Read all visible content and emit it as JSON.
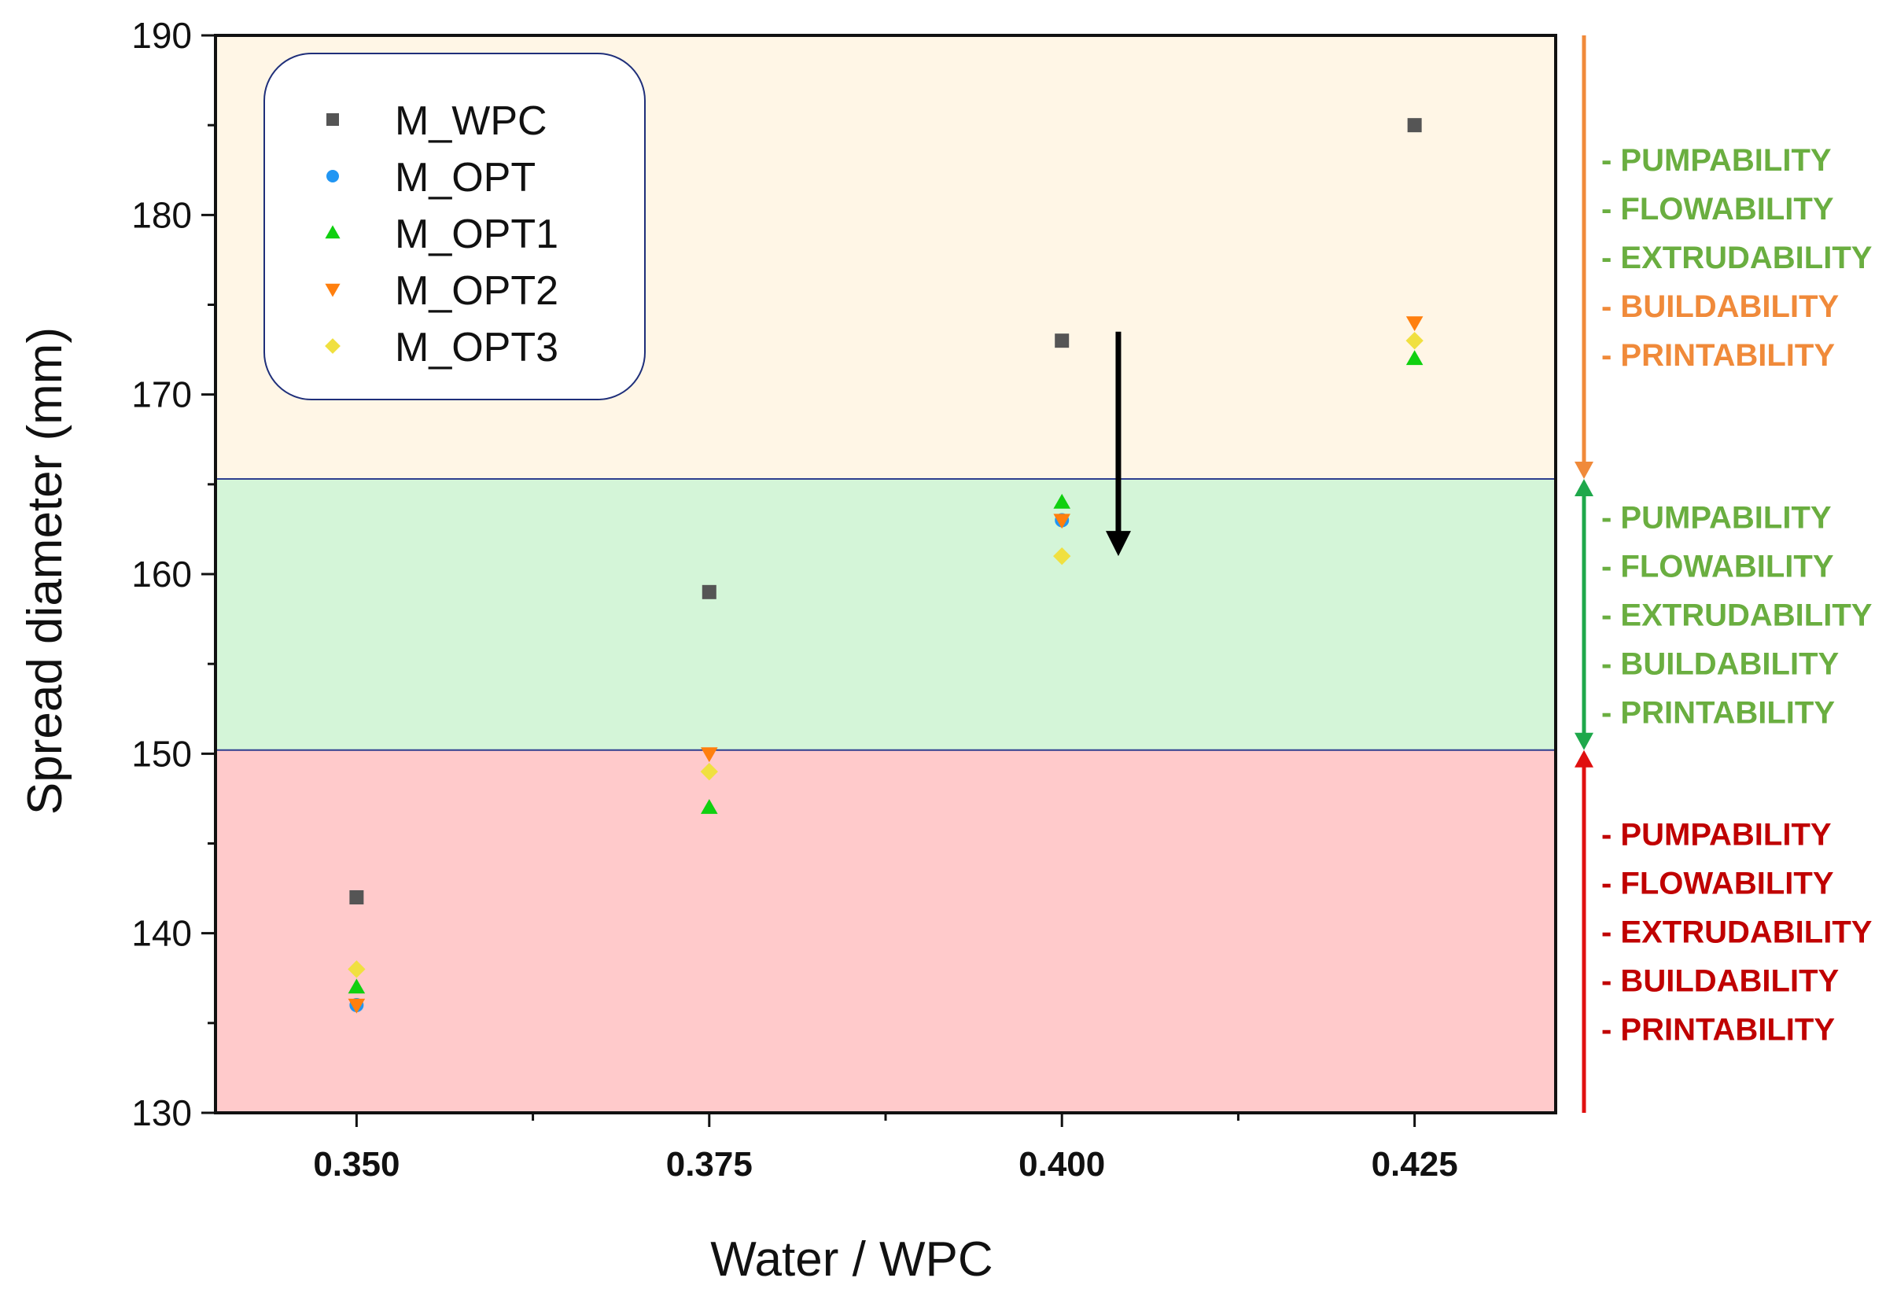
{
  "chart_data": {
    "type": "scatter",
    "title": "",
    "xlabel": "Water / WPC",
    "ylabel": "Spread diameter (mm)",
    "xlim": [
      0.34,
      0.435
    ],
    "ylim": [
      130,
      190
    ],
    "x_ticks": [
      0.35,
      0.375,
      0.4,
      0.425
    ],
    "x_tick_labels": [
      "0.350",
      "0.375",
      "0.400",
      "0.425"
    ],
    "y_ticks": [
      130,
      140,
      150,
      160,
      170,
      180,
      190
    ],
    "y_tick_labels": [
      "130",
      "140",
      "150",
      "160",
      "170",
      "180",
      "190"
    ],
    "grid": false,
    "legend_position": "top-left",
    "series": [
      {
        "name": "M_WPC",
        "marker": "square",
        "color": "#555555",
        "x": [
          0.35,
          0.375,
          0.4,
          0.425
        ],
        "y": [
          142,
          159,
          173,
          185
        ]
      },
      {
        "name": "M_OPT",
        "marker": "circle",
        "color": "#2196F3",
        "x": [
          0.35,
          0.4
        ],
        "y": [
          136,
          163
        ]
      },
      {
        "name": "M_OPT1",
        "marker": "triangle-up",
        "color": "#10D010",
        "x": [
          0.35,
          0.375,
          0.4,
          0.425
        ],
        "y": [
          137,
          147,
          164,
          172
        ]
      },
      {
        "name": "M_OPT2",
        "marker": "triangle-down",
        "color": "#FF7F0E",
        "x": [
          0.35,
          0.375,
          0.4,
          0.425
        ],
        "y": [
          136,
          150,
          163,
          174
        ]
      },
      {
        "name": "M_OPT3",
        "marker": "diamond",
        "color": "#F0E040",
        "x": [
          0.35,
          0.375,
          0.4,
          0.425
        ],
        "y": [
          138,
          149,
          161,
          173
        ]
      }
    ],
    "regions": [
      {
        "name": "high-spread-zone",
        "y_from": 165.3,
        "y_to": 190,
        "color": "#FFF6E6"
      },
      {
        "name": "optimal-zone",
        "y_from": 150.2,
        "y_to": 165.3,
        "color": "#D4F5D8"
      },
      {
        "name": "low-spread-zone",
        "y_from": 130,
        "y_to": 150.2,
        "color": "#FFCACB"
      }
    ],
    "annotations": [
      {
        "type": "arrow",
        "x": 0.404,
        "y_from": 173.5,
        "y_to": 161,
        "color": "#000000"
      }
    ],
    "side_scale": [
      {
        "name": "upper",
        "y_from": 190,
        "y_to": 165.3,
        "color": "#F08A3A",
        "items": [
          {
            "text": "- PUMPABILITY",
            "color": "#6AAE40"
          },
          {
            "text": "- FLOWABILITY",
            "color": "#6AAE40"
          },
          {
            "text": "- EXTRUDABILITY",
            "color": "#6AAE40"
          },
          {
            "text": "- BUILDABILITY",
            "color": "#F08A3A"
          },
          {
            "text": "- PRINTABILITY",
            "color": "#F08A3A"
          }
        ]
      },
      {
        "name": "middle",
        "y_from": 165.3,
        "y_to": 150.2,
        "color": "#1EA84B",
        "items": [
          {
            "text": "- PUMPABILITY",
            "color": "#6AAE40"
          },
          {
            "text": "- FLOWABILITY",
            "color": "#6AAE40"
          },
          {
            "text": "- EXTRUDABILITY",
            "color": "#6AAE40"
          },
          {
            "text": "- BUILDABILITY",
            "color": "#6AAE40"
          },
          {
            "text": "- PRINTABILITY",
            "color": "#6AAE40"
          }
        ]
      },
      {
        "name": "lower",
        "y_from": 150.2,
        "y_to": 130,
        "color": "#E01010",
        "items": [
          {
            "text": "- PUMPABILITY",
            "color": "#C00000"
          },
          {
            "text": "- FLOWABILITY",
            "color": "#C00000"
          },
          {
            "text": "- EXTRUDABILITY",
            "color": "#C00000"
          },
          {
            "text": "- BUILDABILITY",
            "color": "#C00000"
          },
          {
            "text": "- PRINTABILITY",
            "color": "#C00000"
          }
        ]
      }
    ]
  }
}
